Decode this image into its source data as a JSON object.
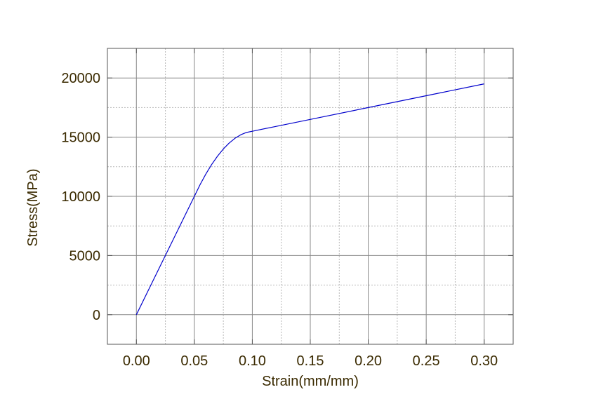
{
  "chart_data": {
    "type": "line",
    "title": "",
    "xlabel": "Strain(mm/mm)",
    "ylabel": "Stress(MPa)",
    "xlim": [
      -0.025,
      0.325
    ],
    "ylim": [
      -2500,
      22500
    ],
    "xticks": [
      0.0,
      0.05,
      0.1,
      0.15,
      0.2,
      0.25,
      0.3
    ],
    "xtick_labels": [
      "0.00",
      "0.05",
      "0.10",
      "0.15",
      "0.20",
      "0.25",
      "0.30"
    ],
    "yticks": [
      0,
      5000,
      10000,
      15000,
      20000
    ],
    "ytick_labels": [
      "0",
      "5000",
      "10000",
      "15000",
      "20000"
    ],
    "grid": true,
    "legend": "none",
    "series": [
      {
        "color": "#0000cc",
        "x": [
          0.0,
          0.01,
          0.02,
          0.03,
          0.04,
          0.05,
          0.055,
          0.06,
          0.065,
          0.07,
          0.075,
          0.08,
          0.085,
          0.09,
          0.095,
          0.1,
          0.12,
          0.15,
          0.2,
          0.25,
          0.3
        ],
        "y": [
          0,
          2000,
          4000,
          6000,
          8000,
          10000,
          11000,
          11900,
          12700,
          13400,
          14000,
          14500,
          14900,
          15200,
          15400,
          15500,
          15900,
          16500,
          17500,
          18500,
          19500
        ]
      }
    ]
  }
}
